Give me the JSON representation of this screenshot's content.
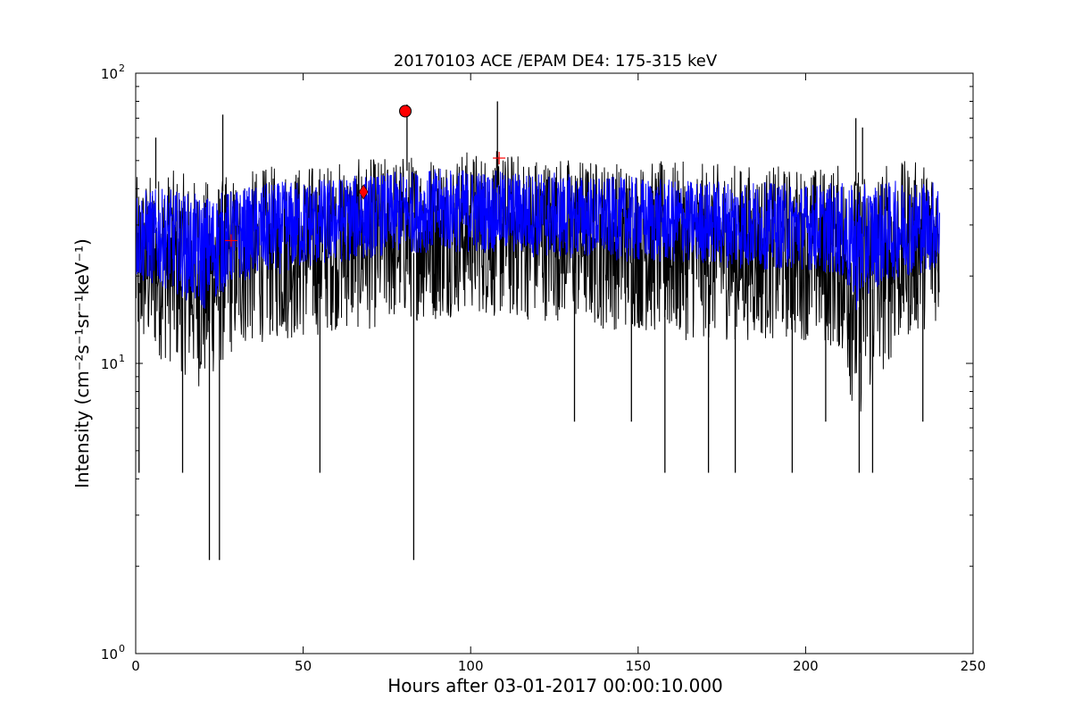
{
  "chart_data": {
    "type": "line",
    "title": "20170103 ACE /EPAM DE4: 175-315 keV",
    "xlabel": "Hours after 03-01-2017 00:00:10.000",
    "ylabel": "Intensity (cm⁻²s⁻¹sr⁻¹keV⁻¹)",
    "xlim": [
      0,
      250
    ],
    "ylim": [
      1,
      100
    ],
    "yscale": "log",
    "x_ticks": [
      0,
      50,
      100,
      150,
      200,
      250
    ],
    "x_tick_labels": [
      "0",
      "50",
      "100",
      "150",
      "200",
      "250"
    ],
    "y_ticks": [
      1,
      10,
      100
    ],
    "y_tick_labels": [
      "10",
      "10",
      "10"
    ],
    "y_tick_exponents": [
      "0",
      "1",
      "2"
    ],
    "grid": false,
    "series": [
      {
        "color": "#000000",
        "style": "noisy raw intensity, upper/lower envelopes",
        "x": [
          0,
          10,
          20,
          30,
          40,
          50,
          60,
          70,
          80,
          90,
          100,
          110,
          120,
          130,
          140,
          150,
          160,
          170,
          180,
          190,
          200,
          210,
          215,
          220,
          230,
          240
        ],
        "upper": [
          44,
          47,
          43,
          45,
          48,
          49,
          50,
          51,
          53,
          54,
          55,
          54,
          53,
          52,
          51,
          50,
          50,
          49,
          49,
          48,
          48,
          49,
          47,
          50,
          50,
          50
        ],
        "lower": [
          11,
          10,
          8,
          11,
          12,
          12,
          13,
          13,
          14,
          14,
          15,
          14,
          14,
          14,
          13,
          13,
          12,
          12,
          12,
          12,
          12,
          11,
          6,
          8,
          12,
          14
        ]
      },
      {
        "color": "#0000ff",
        "style": "smoothed intensity band",
        "x": [
          0,
          10,
          20,
          30,
          40,
          50,
          60,
          70,
          80,
          90,
          100,
          110,
          120,
          130,
          140,
          150,
          160,
          170,
          180,
          190,
          200,
          210,
          215,
          220,
          230,
          240
        ],
        "upper": [
          40,
          40,
          38,
          40,
          42,
          43,
          44,
          45,
          46,
          47,
          47,
          46,
          46,
          45,
          44,
          44,
          43,
          43,
          43,
          42,
          42,
          42,
          41,
          42,
          43,
          43
        ],
        "lower": [
          19,
          18,
          15,
          19,
          20,
          21,
          22,
          23,
          24,
          24,
          24,
          24,
          23,
          23,
          23,
          22,
          22,
          22,
          21,
          21,
          21,
          20,
          15,
          18,
          20,
          21
        ]
      }
    ],
    "spikes": [
      {
        "x": 22,
        "y": 2.1
      },
      {
        "x": 25,
        "y": 2.1
      },
      {
        "x": 83,
        "y": 2.1
      },
      {
        "x": 14,
        "y": 4.2
      },
      {
        "x": 1,
        "y": 4.2
      },
      {
        "x": 55,
        "y": 4.2
      },
      {
        "x": 158,
        "y": 4.2
      },
      {
        "x": 171,
        "y": 4.2
      },
      {
        "x": 179,
        "y": 4.2
      },
      {
        "x": 196,
        "y": 4.2
      },
      {
        "x": 216,
        "y": 4.2
      },
      {
        "x": 220,
        "y": 4.2
      },
      {
        "x": 131,
        "y": 6.3
      },
      {
        "x": 148,
        "y": 6.3
      },
      {
        "x": 206,
        "y": 6.3
      },
      {
        "x": 235,
        "y": 6.3
      },
      {
        "x": 26,
        "y": 72
      },
      {
        "x": 108,
        "y": 80
      },
      {
        "x": 81,
        "y": 78
      },
      {
        "x": 215,
        "y": 70
      },
      {
        "x": 217,
        "y": 65
      },
      {
        "x": 6,
        "y": 60
      }
    ],
    "markers": [
      {
        "shape": "circle",
        "x": 80.5,
        "y": 74,
        "color": "#ff0000"
      },
      {
        "shape": "diamond",
        "x": 68,
        "y": 39,
        "color": "#ff0000"
      },
      {
        "shape": "plus",
        "x": 28.5,
        "y": 26.5,
        "color": "#ff0000"
      },
      {
        "shape": "plus",
        "x": 108.5,
        "y": 51,
        "color": "#ff0000"
      }
    ]
  }
}
